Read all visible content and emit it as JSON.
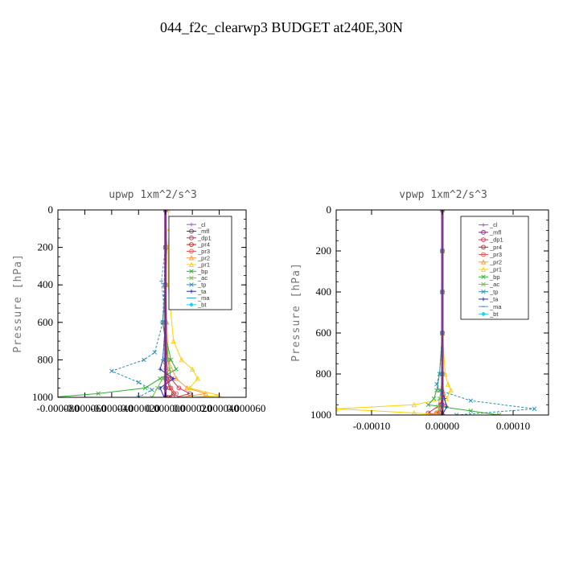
{
  "figure": {
    "title": "044_f2c_clearwp3  BUDGET at240E,30N"
  },
  "chart_data": [
    {
      "type": "line",
      "title": "upwp   1xm^2/s^3",
      "ylabel": "Pressure [hPa]",
      "xlabel": "",
      "xlim": [
        -8e-05,
        6e-05
      ],
      "ylim": [
        0,
        1000
      ],
      "y_inverted": true,
      "x_tick_labels": [
        "-0.000080",
        "-0.000060",
        "-0.000040",
        "-0.000020",
        "0.000000",
        "0.000020",
        "0.000040",
        "0.000060"
      ],
      "x_tick_values": [
        -8e-05,
        -6e-05,
        -4e-05,
        -2e-05,
        0,
        2e-05,
        4e-05,
        6e-05
      ],
      "y_tick_labels": [
        "0",
        "200",
        "400",
        "600",
        "800",
        "1000"
      ],
      "y_tick_values": [
        0,
        200,
        400,
        600,
        800,
        1000
      ],
      "legend_position": "top-right",
      "series": [
        {
          "name": "_cl",
          "color": "#9b59d0",
          "x": [
            0,
            0,
            0,
            0,
            0,
            0,
            0,
            0
          ],
          "y": [
            0,
            200,
            400,
            600,
            800,
            900,
            950,
            1000
          ]
        },
        {
          "name": "_mfl",
          "color": "#7a1f7a",
          "x": [
            0,
            0,
            0,
            0,
            0,
            0,
            0,
            0
          ],
          "y": [
            0,
            200,
            400,
            600,
            800,
            900,
            950,
            1000
          ]
        },
        {
          "name": "_dp1",
          "color": "#d03050",
          "x": [
            0,
            1e-06,
            0,
            -2e-06,
            2e-06,
            4e-06,
            1e-05,
            1.8e-05,
            8e-06
          ],
          "y": [
            0,
            200,
            400,
            600,
            800,
            900,
            950,
            980,
            1000
          ]
        },
        {
          "name": "_pr4",
          "color": "#c02020",
          "x": [
            0,
            0,
            0,
            0,
            0,
            1e-06,
            3e-06,
            6e-06,
            2e-06
          ],
          "y": [
            0,
            200,
            400,
            600,
            800,
            900,
            950,
            980,
            1000
          ]
        },
        {
          "name": "_pr3",
          "color": "#e05050",
          "x": [
            0,
            0,
            0,
            0,
            1e-06,
            2e-06,
            4e-06,
            8e-06,
            3e-06
          ],
          "y": [
            0,
            200,
            400,
            600,
            800,
            900,
            950,
            980,
            1000
          ]
        },
        {
          "name": "_pr2",
          "color": "#ff9a3c",
          "x": [
            0,
            1e-06,
            0,
            1e-06,
            2e-06,
            8e-06,
            1.6e-05,
            3e-05,
            1.2e-05
          ],
          "y": [
            0,
            200,
            400,
            600,
            800,
            900,
            950,
            980,
            1000
          ]
        },
        {
          "name": "_pr1",
          "color": "#ffd000",
          "x": [
            2e-06,
            3e-06,
            2e-06,
            2e-06,
            6e-06,
            1.2e-05,
            2e-05,
            2.4e-05,
            1.8e-05,
            4e-05,
            2e-05
          ],
          "y": [
            0,
            100,
            200,
            400,
            700,
            800,
            850,
            900,
            950,
            990,
            1000
          ]
        },
        {
          "name": "_bp",
          "color": "#30b030",
          "x": [
            0,
            0,
            0,
            -2e-06,
            4e-06,
            8e-06,
            -4e-06,
            -1.5e-05,
            -5e-05,
            -8.5e-05
          ],
          "y": [
            0,
            200,
            400,
            600,
            800,
            850,
            900,
            950,
            980,
            1000
          ]
        },
        {
          "name": "_ac",
          "color": "#70c040",
          "x": [
            0,
            0,
            0,
            0,
            2e-06,
            3e-06,
            -2e-06,
            -6e-06,
            -1e-05
          ],
          "y": [
            0,
            200,
            400,
            600,
            800,
            850,
            900,
            950,
            1000
          ]
        },
        {
          "name": "_tp",
          "color": "#2a8fb0",
          "x": [
            0,
            0,
            -1e-06,
            -2e-06,
            -8e-06,
            -1.6e-05,
            -4e-05,
            -2e-05,
            -1e-05,
            -2e-05
          ],
          "y": [
            0,
            200,
            400,
            600,
            760,
            800,
            860,
            920,
            960,
            1000
          ]
        },
        {
          "name": "_ta",
          "color": "#2030c0",
          "x": [
            0,
            0,
            0,
            0,
            -2e-06,
            -4e-06,
            6e-06,
            -4e-06,
            -1e-06
          ],
          "y": [
            0,
            200,
            400,
            600,
            800,
            850,
            900,
            950,
            1000
          ]
        },
        {
          "name": "_ma",
          "color": "#40a0e0",
          "x": [
            0,
            0,
            -3e-06,
            0,
            -2e-06,
            0,
            0,
            0,
            0
          ],
          "y": [
            0,
            200,
            380,
            600,
            800,
            850,
            900,
            950,
            1000
          ]
        },
        {
          "name": "_bt",
          "color": "#20d0f0",
          "x": [
            0,
            0,
            0,
            0,
            0,
            0,
            0,
            0
          ],
          "y": [
            0,
            200,
            400,
            600,
            800,
            900,
            950,
            1000
          ]
        }
      ]
    },
    {
      "type": "line",
      "title": "vpwp   1xm^2/s^3",
      "ylabel": "Pressure [hPa]",
      "xlabel": "",
      "xlim": [
        -0.00015,
        0.00015
      ],
      "ylim": [
        0,
        1000
      ],
      "y_inverted": true,
      "x_tick_labels": [
        "-0.00010",
        "0.00000",
        "0.00010"
      ],
      "x_tick_values": [
        -0.0001,
        0,
        0.0001
      ],
      "y_tick_labels": [
        "0",
        "200",
        "400",
        "600",
        "800",
        "1000"
      ],
      "y_tick_values": [
        0,
        200,
        400,
        600,
        800,
        1000
      ],
      "legend_position": "top-right",
      "series": [
        {
          "name": "_cl",
          "color": "#9b59d0",
          "x": [
            0,
            0,
            0,
            0,
            0,
            0,
            0,
            0
          ],
          "y": [
            0,
            200,
            400,
            600,
            800,
            900,
            950,
            1000
          ]
        },
        {
          "name": "_mfl",
          "color": "#7a1f7a",
          "x": [
            0,
            0,
            0,
            0,
            0,
            0,
            0,
            0
          ],
          "y": [
            0,
            200,
            400,
            600,
            800,
            900,
            950,
            1000
          ]
        },
        {
          "name": "_dp1",
          "color": "#d03050",
          "x": [
            0,
            0,
            0,
            0,
            0,
            1e-06,
            -3e-06,
            -2e-05,
            -5e-06
          ],
          "y": [
            0,
            200,
            400,
            600,
            800,
            900,
            950,
            990,
            1000
          ]
        },
        {
          "name": "_pr4",
          "color": "#c02020",
          "x": [
            0,
            0,
            0,
            0,
            0,
            0,
            -1e-06,
            -4e-06,
            0
          ],
          "y": [
            0,
            200,
            400,
            600,
            800,
            900,
            950,
            990,
            1000
          ]
        },
        {
          "name": "_pr3",
          "color": "#e05050",
          "x": [
            0,
            0,
            0,
            0,
            0,
            0,
            -2e-06,
            -8e-06,
            -2e-06
          ],
          "y": [
            0,
            200,
            400,
            600,
            800,
            900,
            950,
            990,
            1000
          ]
        },
        {
          "name": "_pr2",
          "color": "#ff9a3c",
          "x": [
            0,
            0,
            0,
            0,
            0,
            2e-06,
            5e-06,
            -1e-05,
            -4e-06
          ],
          "y": [
            0,
            200,
            400,
            600,
            800,
            900,
            950,
            990,
            1000
          ]
        },
        {
          "name": "_pr1",
          "color": "#ffd000",
          "x": [
            0,
            0,
            0,
            0,
            4e-06,
            8e-06,
            1.2e-05,
            6e-06,
            -4e-05,
            -0.00015,
            -4e-05,
            0
          ],
          "y": [
            0,
            200,
            400,
            600,
            800,
            850,
            880,
            920,
            950,
            970,
            990,
            1000
          ]
        },
        {
          "name": "_bp",
          "color": "#30b030",
          "x": [
            0,
            0,
            0,
            0,
            -4e-06,
            -8e-06,
            -1.2e-05,
            -2e-05,
            4e-05,
            8e-05
          ],
          "y": [
            0,
            200,
            400,
            600,
            800,
            880,
            920,
            950,
            980,
            1000
          ]
        },
        {
          "name": "_ac",
          "color": "#70c040",
          "x": [
            0,
            0,
            0,
            0,
            0,
            -2e-06,
            -4e-06,
            -6e-06,
            -2e-06
          ],
          "y": [
            0,
            200,
            400,
            600,
            800,
            880,
            920,
            960,
            1000
          ]
        },
        {
          "name": "_tp",
          "color": "#2a8fb0",
          "x": [
            0,
            0,
            0,
            0,
            -4e-06,
            -8e-06,
            -4e-06,
            4e-05,
            0.00013,
            2e-05
          ],
          "y": [
            0,
            200,
            400,
            600,
            800,
            850,
            880,
            930,
            970,
            1000
          ]
        },
        {
          "name": "_ta",
          "color": "#2030c0",
          "x": [
            0,
            0,
            0,
            0,
            0,
            0,
            3e-06,
            6e-06,
            0
          ],
          "y": [
            0,
            200,
            400,
            600,
            800,
            880,
            920,
            960,
            1000
          ]
        },
        {
          "name": "_ma",
          "color": "#40a0e0",
          "x": [
            0,
            0,
            0,
            0,
            0,
            0,
            0,
            0,
            0
          ],
          "y": [
            0,
            200,
            400,
            600,
            800,
            880,
            920,
            960,
            1000
          ]
        },
        {
          "name": "_bt",
          "color": "#20d0f0",
          "x": [
            0,
            0,
            0,
            0,
            0,
            0,
            0,
            0
          ],
          "y": [
            0,
            200,
            400,
            600,
            800,
            900,
            950,
            1000
          ]
        }
      ]
    }
  ]
}
